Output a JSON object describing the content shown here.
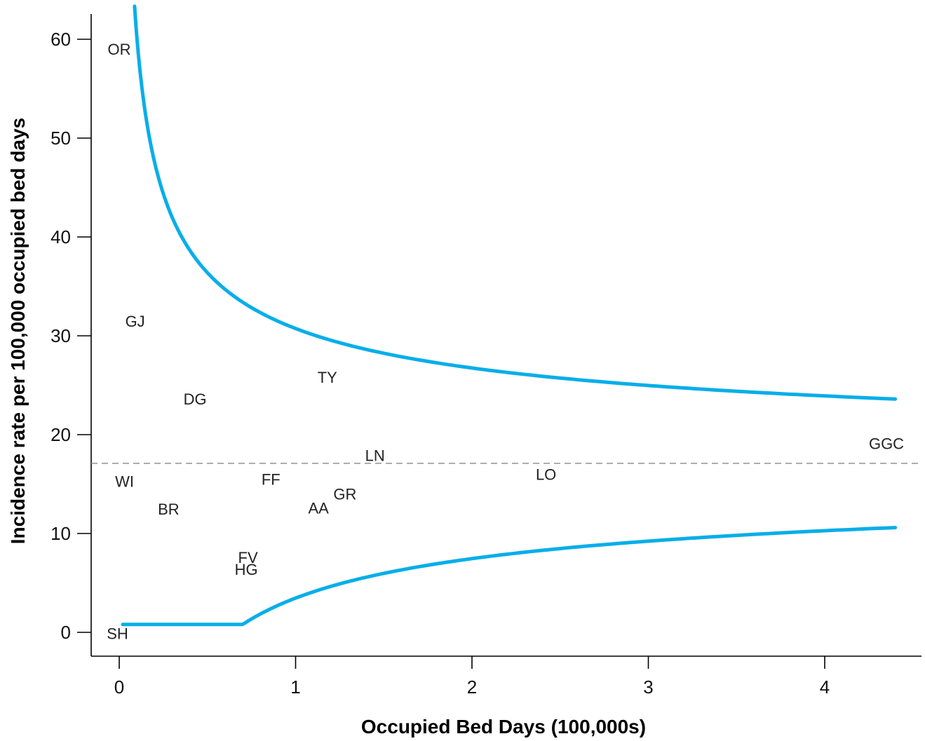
{
  "chart_data": {
    "type": "scatter",
    "subtype": "funnel plot",
    "xlabel": "Occupied Bed Days (100,000s)",
    "ylabel": "Incidence rate per 100,000 occupied bed days",
    "xlim": [
      -0.15,
      4.55
    ],
    "ylim": [
      -2.5,
      63.5
    ],
    "xticks": [
      0,
      1,
      2,
      3,
      4
    ],
    "yticks": [
      0,
      10,
      20,
      30,
      40,
      50,
      60
    ],
    "mean_line": {
      "y": 17.1,
      "style": "dashed",
      "color": "#888888"
    },
    "control_limits": {
      "color": "#08aee8",
      "mean": 17.1,
      "z": 1.0536,
      "x_range": [
        0.02,
        4.4
      ]
    },
    "points": [
      {
        "label": "OR",
        "x": 0.0,
        "y": 59.0
      },
      {
        "label": "GJ",
        "x": 0.09,
        "y": 31.5
      },
      {
        "label": "DG",
        "x": 0.43,
        "y": 23.6
      },
      {
        "label": "TY",
        "x": 1.18,
        "y": 25.8
      },
      {
        "label": "LN",
        "x": 1.45,
        "y": 17.9
      },
      {
        "label": "GGC",
        "x": 4.35,
        "y": 19.1
      },
      {
        "label": "WI",
        "x": 0.03,
        "y": 15.3
      },
      {
        "label": "FF",
        "x": 0.86,
        "y": 15.5
      },
      {
        "label": "LO",
        "x": 2.42,
        "y": 16.0
      },
      {
        "label": "GR",
        "x": 1.28,
        "y": 14.0
      },
      {
        "label": "AA",
        "x": 1.13,
        "y": 12.6
      },
      {
        "label": "BR",
        "x": 0.28,
        "y": 12.5
      },
      {
        "label": "FV",
        "x": 0.73,
        "y": 7.6
      },
      {
        "label": "HG",
        "x": 0.72,
        "y": 6.4
      },
      {
        "label": "SH",
        "x": -0.01,
        "y": -0.1
      }
    ]
  }
}
